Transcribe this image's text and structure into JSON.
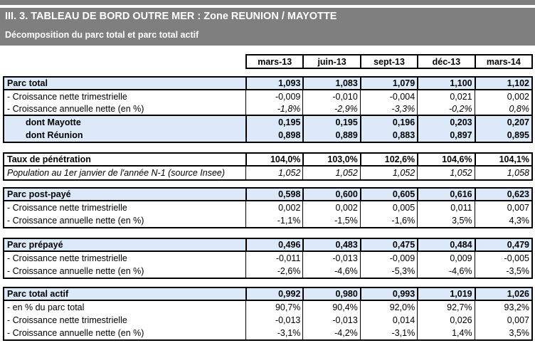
{
  "banner": {
    "title": "III. 3. TABLEAU DE BORD OUTRE MER : Zone REUNION / MAYOTTE",
    "subtitle": "Décomposition du parc total et parc total actif"
  },
  "columns": [
    "mars-13",
    "juin-13",
    "sept-13",
    "déc-13",
    "mars-14"
  ],
  "sections": [
    {
      "name": "parc-total",
      "rows": [
        {
          "label": "Parc total",
          "values": [
            "1,093",
            "1,083",
            "1,079",
            "1,100",
            "1,102"
          ]
        },
        {
          "label": "- Croissance nette trimestrielle",
          "values": [
            "-0,009",
            "-0,010",
            "-0,004",
            "0,021",
            "0,002"
          ]
        },
        {
          "label": "- Croissance annuelle nette (en %)",
          "values": [
            "-1,8%",
            "-2,9%",
            "-3,3%",
            "-0,2%",
            "0,8%"
          ]
        },
        {
          "label": "dont Mayotte",
          "values": [
            "0,195",
            "0,195",
            "0,196",
            "0,203",
            "0,207"
          ]
        },
        {
          "label": "dont Réunion",
          "values": [
            "0,898",
            "0,889",
            "0,883",
            "0,897",
            "0,895"
          ]
        }
      ]
    },
    {
      "name": "taux-penetration",
      "rows": [
        {
          "label": "Taux de pénétration",
          "values": [
            "104,0%",
            "103,0%",
            "102,6%",
            "104,6%",
            "104,1%"
          ]
        },
        {
          "label": "Population au 1er janvier de l'année N-1 (source Insee)",
          "values": [
            "1,052",
            "1,052",
            "1,052",
            "1,052",
            "1,058"
          ]
        }
      ]
    },
    {
      "name": "parc-post-paye",
      "rows": [
        {
          "label": "Parc post-payé",
          "values": [
            "0,598",
            "0,600",
            "0,605",
            "0,616",
            "0,623"
          ]
        },
        {
          "label": "- Croissance nette trimestrielle",
          "values": [
            "0,002",
            "0,002",
            "0,005",
            "0,011",
            "0,007"
          ]
        },
        {
          "label": "- Croissance annuelle nette (en %)",
          "values": [
            "-1,1%",
            "-1,5%",
            "-1,6%",
            "3,5%",
            "4,3%"
          ]
        }
      ]
    },
    {
      "name": "parc-prepaye",
      "rows": [
        {
          "label": "Parc prépayé",
          "values": [
            "0,496",
            "0,483",
            "0,475",
            "0,484",
            "0,479"
          ]
        },
        {
          "label": "- Croissance nette trimestrielle",
          "values": [
            "-0,011",
            "-0,013",
            "-0,009",
            "0,009",
            "-0,005"
          ]
        },
        {
          "label": "- Croissance annuelle nette (en %)",
          "values": [
            "-2,6%",
            "-4,6%",
            "-5,3%",
            "-4,6%",
            "-3,5%"
          ]
        }
      ]
    },
    {
      "name": "parc-total-actif",
      "rows": [
        {
          "label": "Parc total actif",
          "values": [
            "0,992",
            "0,980",
            "0,993",
            "1,019",
            "1,026"
          ]
        },
        {
          "label": "- en % du parc total",
          "values": [
            "90,7%",
            "90,4%",
            "92,0%",
            "92,7%",
            "93,2%"
          ]
        },
        {
          "label": "- Croissance nette trimestrielle",
          "values": [
            "-0,013",
            "-0,013",
            "0,014",
            "0,026",
            "0,007"
          ]
        },
        {
          "label": "- Croissance annuelle nette (en %)",
          "values": [
            "-3,1%",
            "-4,2%",
            "-3,1%",
            "1,4%",
            "3,5%"
          ]
        }
      ]
    }
  ],
  "colors": {
    "banner_bg": "#7f7f7f",
    "highlight_row_bg": "#dce9f8",
    "border": "#000000"
  }
}
